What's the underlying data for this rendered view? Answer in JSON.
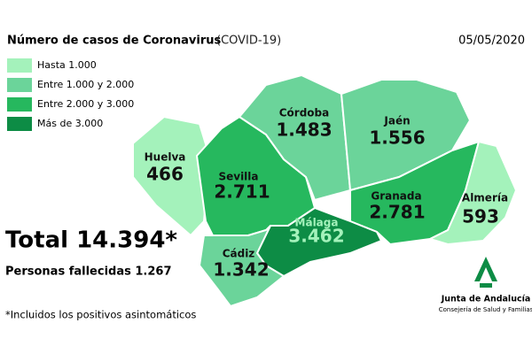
{
  "header": {
    "title": "Número de casos de Coronavirus",
    "subtitle": "(COVID-19)",
    "date": "05/05/2020"
  },
  "legend": [
    {
      "label": "Hasta 1.000",
      "color": "#a4f2bb"
    },
    {
      "label": "Entre 1.000 y 2.000",
      "color": "#6bd49a"
    },
    {
      "label": "Entre 2.000 y 3.000",
      "color": "#26b85e"
    },
    {
      "label": "Más de 3.000",
      "color": "#0d8c45"
    }
  ],
  "provinces": [
    {
      "name": "Huelva",
      "value": "466",
      "color": "#a4f2bb"
    },
    {
      "name": "Sevilla",
      "value": "2.711",
      "color": "#26b85e"
    },
    {
      "name": "Córdoba",
      "value": "1.483",
      "color": "#6bd49a"
    },
    {
      "name": "Jaén",
      "value": "1.556",
      "color": "#6bd49a"
    },
    {
      "name": "Granada",
      "value": "2.781",
      "color": "#26b85e"
    },
    {
      "name": "Almería",
      "value": "593",
      "color": "#a4f2bb"
    },
    {
      "name": "Málaga",
      "value": "3.462",
      "color": "#0d8c45"
    },
    {
      "name": "Cádiz",
      "value": "1.342",
      "color": "#6bd49a"
    }
  ],
  "summary": {
    "total": "Total 14.394*",
    "deaths": "Personas fallecidas 1.267",
    "footnote": "*Incluidos los positivos asintomáticos"
  },
  "logo": {
    "name": "Junta de Andalucía",
    "department": "Consejería de Salud y Familias"
  }
}
